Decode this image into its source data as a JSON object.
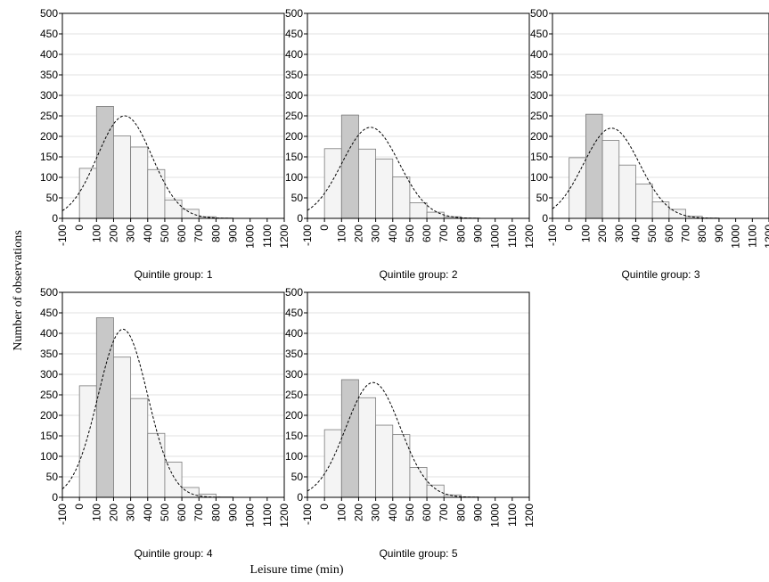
{
  "figure": {
    "ylabel": "Number of observations",
    "xlabel": "Leisure time (min)"
  },
  "style": {
    "bar_fill_light": "#f4f4f4",
    "bar_fill_dark": "#c8c8c8",
    "bar_stroke": "#7a7a7a",
    "grid": "#e2e2e2",
    "curve": "#000000"
  },
  "chart_data": [
    {
      "type": "bar",
      "title": "Quintile group: 1",
      "bin_edges": [
        -100,
        0,
        100,
        200,
        300,
        400,
        500,
        600,
        700,
        800,
        900,
        1000,
        1100,
        1200
      ],
      "values": [
        0,
        122,
        273,
        201,
        174,
        119,
        45,
        22,
        4,
        1,
        0,
        0,
        0
      ],
      "normal_curve": {
        "mean": 265,
        "sd": 160,
        "peak": 250
      },
      "x_ticks": [
        "-100",
        "0",
        "100",
        "200",
        "300",
        "400",
        "500",
        "600",
        "700",
        "800",
        "900",
        "1000",
        "1100",
        "1200"
      ],
      "y_ticks": [
        "0",
        "50",
        "100",
        "150",
        "200",
        "250",
        "300",
        "350",
        "400",
        "450",
        "500"
      ],
      "xlim": [
        -100,
        1200
      ],
      "ylim": [
        0,
        500
      ],
      "grid": true
    },
    {
      "type": "bar",
      "title": "Quintile group: 2",
      "bin_edges": [
        -100,
        0,
        100,
        200,
        300,
        400,
        500,
        600,
        700,
        800,
        900,
        1000,
        1100,
        1200
      ],
      "values": [
        0,
        170,
        252,
        169,
        145,
        101,
        38,
        15,
        4,
        1,
        0,
        0,
        0
      ],
      "normal_curve": {
        "mean": 270,
        "sd": 168,
        "peak": 222
      },
      "x_ticks": [
        "-100",
        "0",
        "100",
        "200",
        "300",
        "400",
        "500",
        "600",
        "700",
        "800",
        "900",
        "1000",
        "1100",
        "1200"
      ],
      "y_ticks": [
        "0",
        "50",
        "100",
        "150",
        "200",
        "250",
        "300",
        "350",
        "400",
        "450",
        "500"
      ],
      "xlim": [
        -100,
        1200
      ],
      "ylim": [
        0,
        500
      ],
      "grid": true
    },
    {
      "type": "bar",
      "title": "Quintile group: 3",
      "bin_edges": [
        -100,
        0,
        100,
        200,
        300,
        400,
        500,
        600,
        700,
        800,
        900,
        1000,
        1100,
        1200
      ],
      "values": [
        0,
        148,
        254,
        190,
        130,
        84,
        40,
        22,
        5,
        1,
        0,
        0,
        0
      ],
      "normal_curve": {
        "mean": 255,
        "sd": 168,
        "peak": 220
      },
      "x_ticks": [
        "-100",
        "0",
        "100",
        "200",
        "300",
        "400",
        "500",
        "600",
        "700",
        "800",
        "900",
        "1000",
        "1100",
        "1200"
      ],
      "y_ticks": [
        "0",
        "50",
        "100",
        "150",
        "200",
        "250",
        "300",
        "350",
        "400",
        "450",
        "500"
      ],
      "xlim": [
        -100,
        1200
      ],
      "ylim": [
        0,
        500
      ],
      "grid": true
    },
    {
      "type": "bar",
      "title": "Quintile group: 4",
      "bin_edges": [
        -100,
        0,
        100,
        200,
        300,
        400,
        500,
        600,
        700,
        800,
        900,
        1000,
        1100,
        1200
      ],
      "values": [
        0,
        272,
        438,
        342,
        241,
        156,
        86,
        24,
        8,
        1,
        0,
        0,
        0
      ],
      "normal_curve": {
        "mean": 255,
        "sd": 145,
        "peak": 410
      },
      "x_ticks": [
        "-100",
        "0",
        "100",
        "200",
        "300",
        "400",
        "500",
        "600",
        "700",
        "800",
        "900",
        "1000",
        "1100",
        "1200"
      ],
      "y_ticks": [
        "0",
        "50",
        "100",
        "150",
        "200",
        "250",
        "300",
        "350",
        "400",
        "450",
        "500"
      ],
      "xlim": [
        -100,
        1200
      ],
      "ylim": [
        0,
        500
      ],
      "grid": true
    },
    {
      "type": "bar",
      "title": "Quintile group: 5",
      "bin_edges": [
        -100,
        0,
        100,
        200,
        300,
        400,
        500,
        600,
        700,
        800,
        900,
        1000,
        1100,
        1200
      ],
      "values": [
        0,
        165,
        287,
        243,
        176,
        153,
        73,
        30,
        6,
        1,
        0,
        0,
        0
      ],
      "normal_curve": {
        "mean": 285,
        "sd": 160,
        "peak": 280
      },
      "x_ticks": [
        "-100",
        "0",
        "100",
        "200",
        "300",
        "400",
        "500",
        "600",
        "700",
        "800",
        "900",
        "1000",
        "1100",
        "1200"
      ],
      "y_ticks": [
        "0",
        "50",
        "100",
        "150",
        "200",
        "250",
        "300",
        "350",
        "400",
        "450",
        "500"
      ],
      "xlim": [
        -100,
        1200
      ],
      "ylim": [
        0,
        500
      ],
      "grid": true
    }
  ]
}
